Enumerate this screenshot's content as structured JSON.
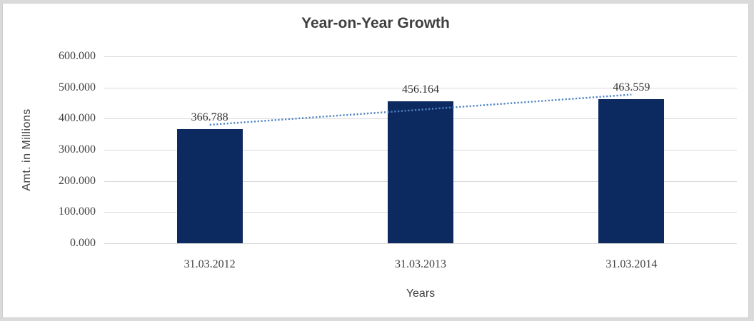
{
  "chart_data": {
    "type": "bar",
    "title": "Year-on-Year Growth",
    "xlabel": "Years",
    "ylabel": "Amt. in Millions",
    "categories": [
      "31.03.2012",
      "31.03.2013",
      "31.03.2014"
    ],
    "values": [
      366.788,
      456.164,
      463.559
    ],
    "data_labels": [
      "366.788",
      "456.164",
      "463.559"
    ],
    "yticks": [
      "600.000",
      "500.000",
      "400.000",
      "300.000",
      "200.000",
      "100.000",
      "0.000"
    ],
    "ylim": [
      0,
      600
    ],
    "grid": true,
    "legend": "none",
    "trendline": "linear",
    "colors": {
      "bar": "#0d2a60",
      "trendline": "#4e84c4",
      "gridline": "#d9d9d9",
      "text": "#3f3f3f"
    }
  }
}
